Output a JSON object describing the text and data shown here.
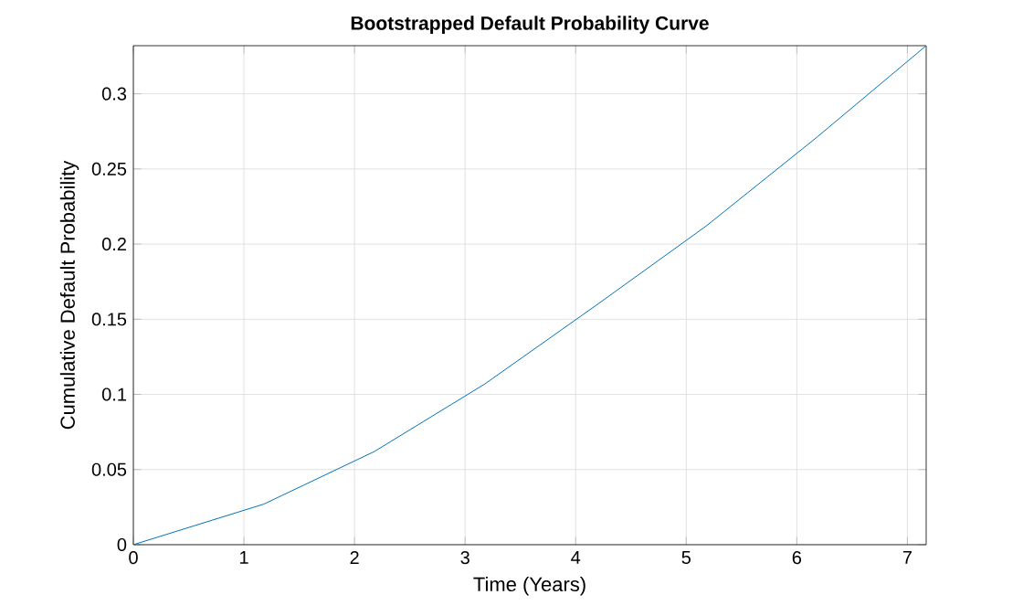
{
  "chart_data": {
    "type": "line",
    "title": "Bootstrapped Default Probability Curve",
    "xlabel": "Time (Years)",
    "ylabel": "Cumulative Default Probability",
    "x": [
      0,
      1.18,
      2.18,
      3.18,
      4.18,
      5.18,
      6.18,
      7.17
    ],
    "series": [
      {
        "color": "#0072bd",
        "values": [
          0,
          0.027,
          0.062,
          0.107,
          0.159,
          0.212,
          0.271,
          0.332
        ]
      }
    ],
    "xlim": [
      0,
      7.17
    ],
    "ylim": [
      0,
      0.332
    ],
    "xticks": [
      0,
      1,
      2,
      3,
      4,
      5,
      6,
      7
    ],
    "yticks": [
      0,
      0.05,
      0.1,
      0.15,
      0.2,
      0.25,
      0.3
    ],
    "grid": true
  }
}
